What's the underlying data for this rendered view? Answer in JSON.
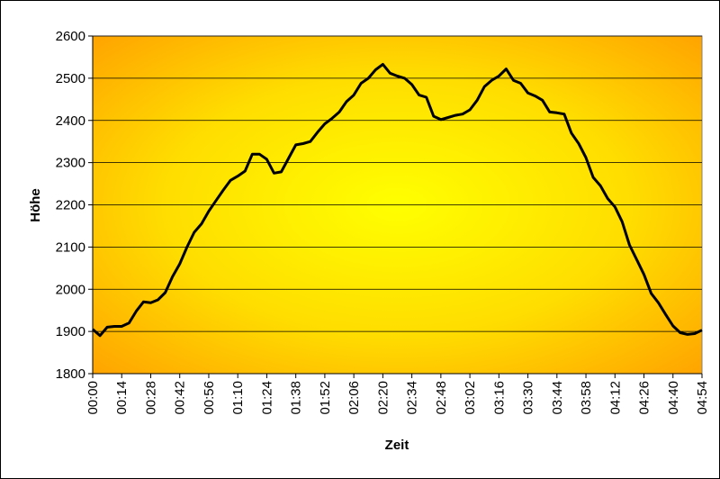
{
  "chart_data": {
    "type": "line",
    "x_label": "Zeit",
    "y_label": "Höhe",
    "categories": [
      "00:00",
      null,
      null,
      null,
      "00:14",
      null,
      null,
      null,
      "00:28",
      null,
      null,
      null,
      "00:42",
      null,
      null,
      null,
      "00:56",
      null,
      null,
      null,
      "01:10",
      null,
      null,
      null,
      "01:24",
      null,
      null,
      null,
      "01:38",
      null,
      null,
      null,
      "01:52",
      null,
      null,
      null,
      "02:06",
      null,
      null,
      null,
      "02:20",
      null,
      null,
      null,
      "02:34",
      null,
      null,
      null,
      "02:48",
      null,
      null,
      null,
      "03:02",
      null,
      null,
      null,
      "03:16",
      null,
      null,
      null,
      "03:30",
      null,
      null,
      null,
      "03:44",
      null,
      null,
      null,
      "03:58",
      null,
      null,
      null,
      "04:12",
      null,
      null,
      null,
      "04:26",
      null,
      null,
      null,
      "04:40",
      null,
      null,
      null,
      "04:54"
    ],
    "series": [
      {
        "color": "#000000",
        "values": [
          1905,
          1890,
          1910,
          1912,
          1912,
          1920,
          1948,
          1970,
          1968,
          1975,
          1992,
          2030,
          2060,
          2100,
          2135,
          2155,
          2185,
          2210,
          2235,
          2258,
          2268,
          2280,
          2320,
          2320,
          2308,
          2275,
          2278,
          2310,
          2342,
          2345,
          2350,
          2372,
          2392,
          2405,
          2420,
          2445,
          2460,
          2488,
          2500,
          2520,
          2533,
          2512,
          2505,
          2500,
          2485,
          2460,
          2455,
          2410,
          2402,
          2407,
          2412,
          2415,
          2425,
          2448,
          2480,
          2495,
          2505,
          2522,
          2495,
          2488,
          2465,
          2458,
          2448,
          2420,
          2418,
          2415,
          2370,
          2345,
          2312,
          2265,
          2245,
          2215,
          2195,
          2160,
          2105,
          2070,
          2035,
          1990,
          1968,
          1940,
          1913,
          1897,
          1893,
          1895,
          1903
        ]
      }
    ],
    "ylim": [
      1800,
      2600
    ],
    "yticks": [
      1800,
      1900,
      2000,
      2100,
      2200,
      2300,
      2400,
      2500,
      2600
    ],
    "grid": true
  }
}
